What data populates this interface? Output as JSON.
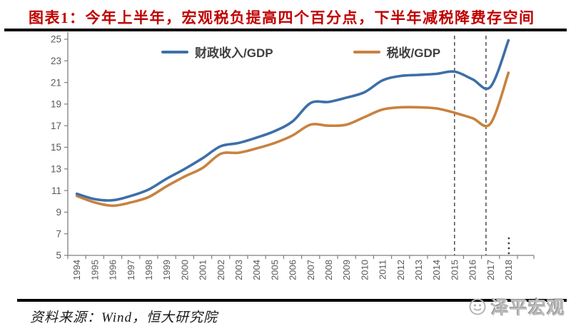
{
  "header": {
    "title": "图表1：今年上半年，宏观税负提高四个百分点，下半年减税降费存空间",
    "title_color": "#c00000"
  },
  "chart_data": {
    "type": "line",
    "title": "",
    "xlabel": "",
    "ylabel": "",
    "ylim": [
      5,
      25
    ],
    "ytick_step": 2,
    "grid": false,
    "legend_position": "top",
    "categories": [
      "1994",
      "1995",
      "1996",
      "1997",
      "1998",
      "1999",
      "2000",
      "2001",
      "2002",
      "2003",
      "2004",
      "2005",
      "2006",
      "2007",
      "2008",
      "2009",
      "2010",
      "2011",
      "2012",
      "2013",
      "2014",
      "2015",
      "2016",
      "2017",
      "2018"
    ],
    "series": [
      {
        "name": "财政收入/GDP",
        "color": "#3d6fa8",
        "values": [
          10.7,
          10.2,
          10.1,
          10.5,
          11.1,
          12.1,
          13.0,
          14.0,
          15.1,
          15.4,
          15.9,
          16.5,
          17.4,
          19.1,
          19.2,
          19.6,
          20.1,
          21.2,
          21.6,
          21.7,
          21.8,
          22.0,
          21.3,
          20.6,
          24.9
        ]
      },
      {
        "name": "税收/GDP",
        "color": "#c8823f",
        "values": [
          10.5,
          9.9,
          9.6,
          9.9,
          10.4,
          11.4,
          12.3,
          13.1,
          14.4,
          14.5,
          14.9,
          15.4,
          16.1,
          17.1,
          17.0,
          17.1,
          17.8,
          18.5,
          18.7,
          18.7,
          18.6,
          18.2,
          17.7,
          17.2,
          21.9
        ]
      }
    ],
    "annotations": {
      "dashed_vlines_at_year_index": [
        21,
        22.75
      ],
      "dotted_tick_at_last_category": true
    }
  },
  "footer": {
    "source": "资料来源：Wind，恒大研究院",
    "watermark": "泽平宏观"
  }
}
